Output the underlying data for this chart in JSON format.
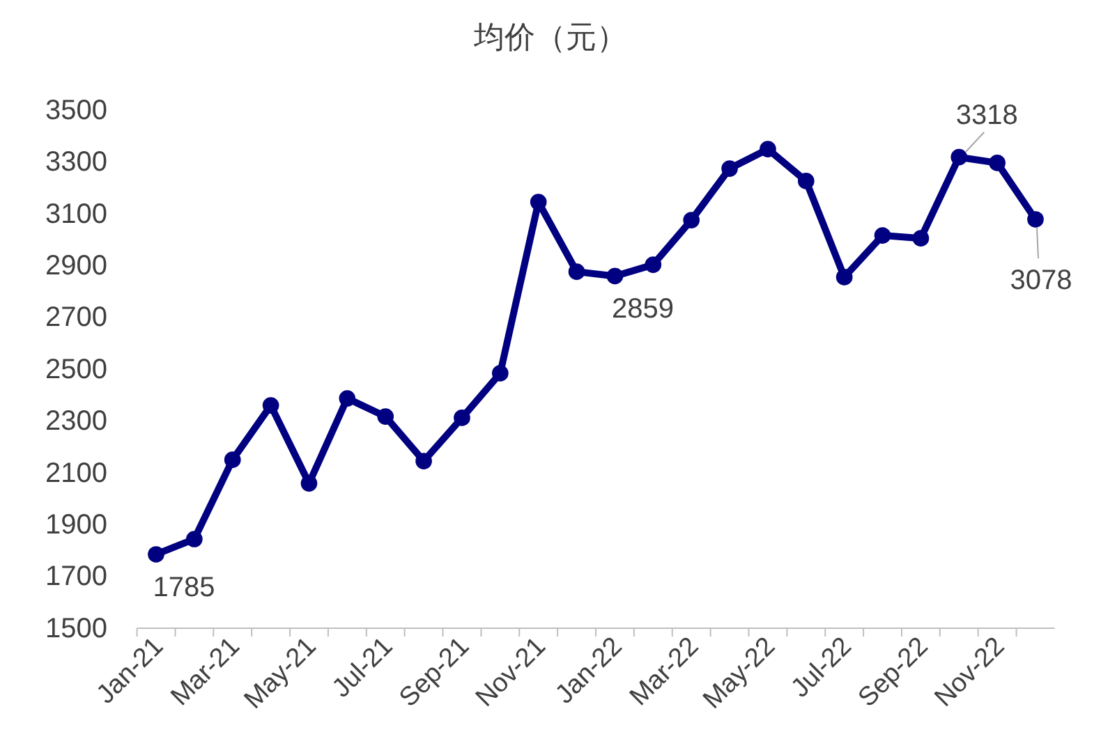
{
  "chart_data": {
    "type": "line",
    "title": "均价（元）",
    "categories": [
      "Jan-21",
      null,
      "Mar-21",
      null,
      "May-21",
      null,
      "Jul-21",
      null,
      "Sep-21",
      null,
      "Nov-21",
      null,
      "Jan-22",
      null,
      "Mar-22",
      null,
      "May-22",
      null,
      "Jul-22",
      null,
      "Sep-22",
      null,
      "Nov-22",
      null
    ],
    "series": [
      {
        "color": "#000080",
        "values": [
          1785,
          1844,
          2150,
          2360,
          2059,
          2387,
          2317,
          2145,
          2312,
          2484,
          3145,
          2876,
          2859,
          2903,
          3075,
          3274,
          3349,
          3226,
          2855,
          3016,
          3005,
          3318,
          3296,
          3078
        ],
        "value_labels": [
          "1785",
          null,
          null,
          null,
          null,
          null,
          null,
          null,
          null,
          null,
          null,
          null,
          "2859",
          null,
          null,
          null,
          null,
          null,
          null,
          null,
          null,
          "3318",
          null,
          "3078"
        ]
      }
    ],
    "ylim": [
      1500,
      3500
    ],
    "yticks": [
      1500,
      1700,
      1900,
      2100,
      2300,
      2500,
      2700,
      2900,
      3100,
      3300,
      3500
    ],
    "grid": false,
    "marker": "circle",
    "line_style": "solid"
  }
}
